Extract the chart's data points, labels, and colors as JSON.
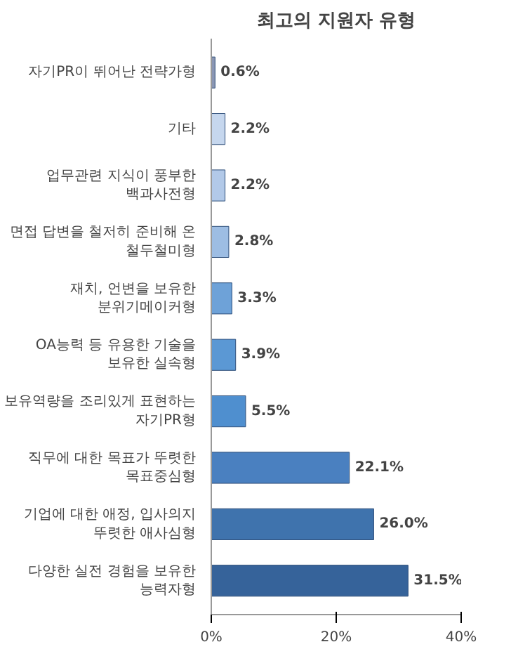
{
  "chart_data": {
    "type": "bar",
    "orientation": "horizontal",
    "title": "최고의 지원자 유형",
    "categories": [
      "자기PR이 뛰어난 전략가형",
      "기타",
      "업무관련 지식이 풍부한 백과사전형",
      "면접 답변을 철저히 준비해 온 철두철미형",
      "재치, 언변을 보유한 분위기메이커형",
      "OA능력 등 유용한 기술을 보유한 실속형",
      "보유역량을 조리있게 표현하는 자기PR형",
      "직무에 대한 목표가 뚜렷한 목표중심형",
      "기업에 대한 애정, 입사의지 뚜렷한 애사심형",
      "다양한 실전 경험을 보유한 능력자형"
    ],
    "values": [
      0.6,
      2.2,
      2.2,
      2.8,
      3.3,
      3.9,
      5.5,
      22.1,
      26.0,
      31.5
    ],
    "value_labels": [
      "0.6%",
      "2.2%",
      "2.2%",
      "2.8%",
      "3.3%",
      "3.9%",
      "5.5%",
      "22.1%",
      "26.0%",
      "31.5%"
    ],
    "colors": [
      "#8a96b4",
      "#c6d7ee",
      "#b2c9e8",
      "#9dbde3",
      "#6ea2d8",
      "#5b98d4",
      "#4f8fcf",
      "#4a80c0",
      "#3f73ad",
      "#36639a"
    ],
    "xlim": [
      0,
      40
    ],
    "xticks": [
      {
        "value": 0,
        "label": "0%"
      },
      {
        "value": 20,
        "label": "20%"
      },
      {
        "value": 40,
        "label": "40%"
      }
    ],
    "grid": false
  }
}
